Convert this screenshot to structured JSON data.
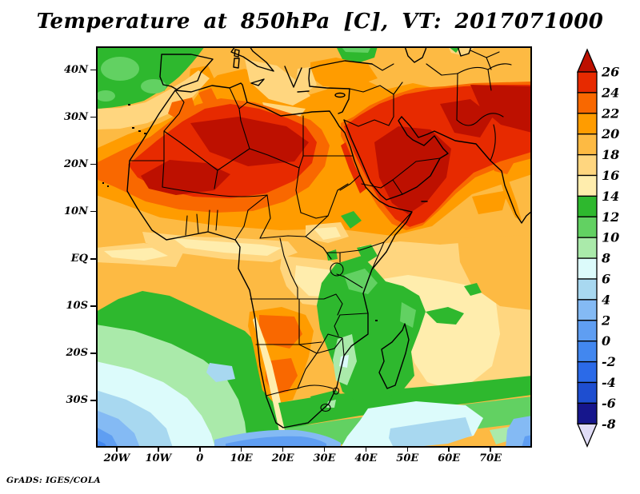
{
  "ui": {
    "title": "Temperature at 850hPa [C], VT: 2017071000",
    "attribution": "GrADS: IGES/COLA"
  },
  "chart_data": {
    "type": "heatmap",
    "subtype": "filled-contour-map",
    "title": "Temperature at 850hPa [C], VT: 2017071000",
    "variable": "Temperature",
    "pressure_level": "850hPa",
    "units": "C",
    "valid_time": "2017071000",
    "xlabel": "",
    "ylabel": "",
    "lon_range": [
      -25,
      80
    ],
    "lat_range": [
      -40,
      45
    ],
    "grid": "off",
    "legend_position": "right-vertical-colorbar",
    "contour_interval": 2,
    "levels": [
      -8,
      -6,
      -4,
      -2,
      0,
      2,
      4,
      6,
      8,
      10,
      12,
      14,
      16,
      18,
      20,
      22,
      24,
      26
    ],
    "lat_ticks": [
      {
        "label": "40N",
        "deg": 40
      },
      {
        "label": "30N",
        "deg": 30
      },
      {
        "label": "20N",
        "deg": 20
      },
      {
        "label": "10N",
        "deg": 10
      },
      {
        "label": "EQ",
        "deg": 0
      },
      {
        "label": "10S",
        "deg": -10
      },
      {
        "label": "20S",
        "deg": -20
      },
      {
        "label": "30S",
        "deg": -30
      }
    ],
    "lon_ticks": [
      {
        "label": "20W",
        "deg": -20
      },
      {
        "label": "10W",
        "deg": -10
      },
      {
        "label": "0",
        "deg": 0
      },
      {
        "label": "10E",
        "deg": 10
      },
      {
        "label": "20E",
        "deg": 20
      },
      {
        "label": "30E",
        "deg": 30
      },
      {
        "label": "40E",
        "deg": 40
      },
      {
        "label": "50E",
        "deg": 50
      },
      {
        "label": "60E",
        "deg": 60
      },
      {
        "label": "70E",
        "deg": 70
      }
    ],
    "palette": [
      {
        "range": "< -8",
        "color": "#e0dcf6"
      },
      {
        "range": "-8 to -6",
        "color": "#16168c"
      },
      {
        "range": "-6 to -4",
        "color": "#1e4ed0"
      },
      {
        "range": "-4 to -2",
        "color": "#2b6ae8"
      },
      {
        "range": "-2 to 0",
        "color": "#4287ef"
      },
      {
        "range": "0 to 2",
        "color": "#5f9ef2"
      },
      {
        "range": "2 to 4",
        "color": "#84baf4"
      },
      {
        "range": "4 to 6",
        "color": "#a8d8f0"
      },
      {
        "range": "6 to 8",
        "color": "#dcfbfb"
      },
      {
        "range": "8 to 10",
        "color": "#aaeaaa"
      },
      {
        "range": "10 to 12",
        "color": "#62d162"
      },
      {
        "range": "12 to 14",
        "color": "#2eb82e"
      },
      {
        "range": "14 to 16",
        "color": "#ffedad"
      },
      {
        "range": "16 to 18",
        "color": "#ffd67f"
      },
      {
        "range": "18 to 20",
        "color": "#fdba43"
      },
      {
        "range": "20 to 22",
        "color": "#ff9c00"
      },
      {
        "range": "22 to 24",
        "color": "#f96800"
      },
      {
        "range": "24 to 26",
        "color": "#e72a00"
      },
      {
        "range": "> 26",
        "color": "#bd1000"
      }
    ],
    "sampled_grid": {
      "note": "approximate 850hPa temperatures (C) read from the shading",
      "lons": [
        -20,
        -10,
        0,
        10,
        20,
        30,
        40,
        50,
        60,
        70
      ],
      "lats": [
        40,
        30,
        20,
        10,
        0,
        -10,
        -20,
        -30
      ],
      "values_degC": [
        [
          13,
          14,
          19,
          18,
          17,
          20,
          22,
          24,
          25,
          25
        ],
        [
          16,
          18,
          25,
          23,
          19,
          21,
          23,
          26,
          27,
          26
        ],
        [
          21,
          25,
          27,
          26,
          24,
          23,
          26,
          27,
          24,
          19
        ],
        [
          19,
          20,
          20,
          19,
          19,
          20,
          21,
          22,
          19,
          18
        ],
        [
          18,
          18,
          17,
          16,
          17,
          18,
          15,
          16,
          17,
          18
        ],
        [
          13,
          12,
          14,
          17,
          20,
          18,
          13,
          15,
          16,
          17
        ],
        [
          7,
          9,
          11,
          14,
          20,
          17,
          12,
          14,
          15,
          16
        ],
        [
          2,
          3,
          5,
          8,
          16,
          12,
          10,
          11,
          13,
          14
        ]
      ]
    }
  }
}
